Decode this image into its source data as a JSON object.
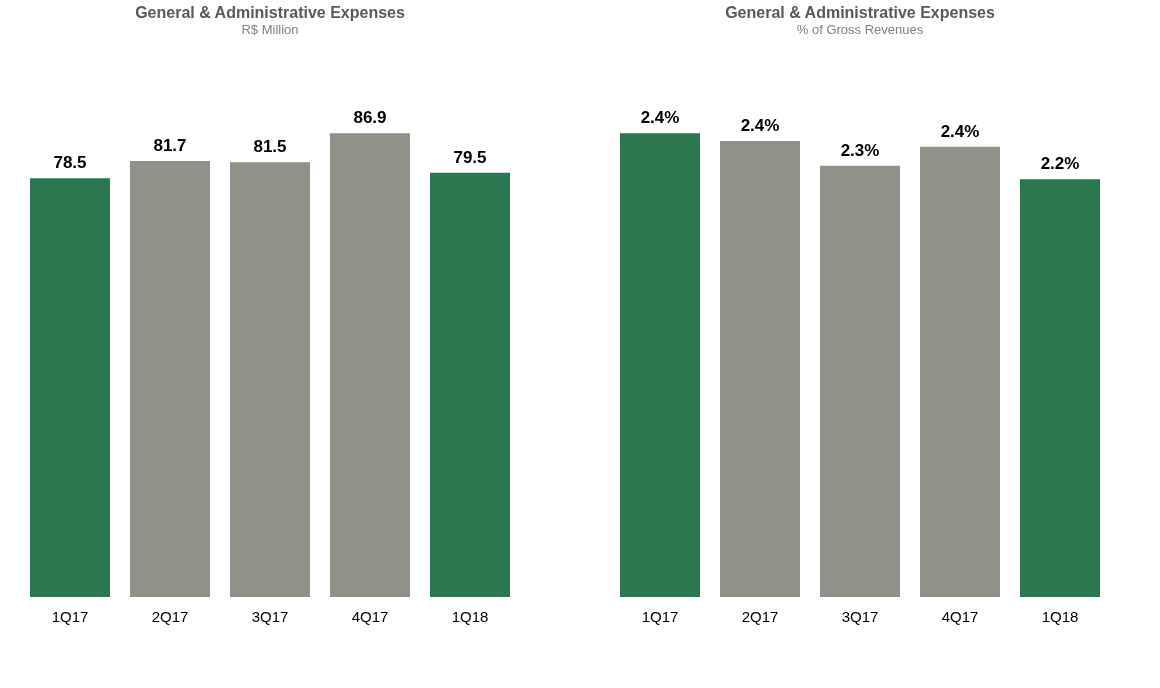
{
  "chart_data": [
    {
      "type": "bar",
      "title": "General & Administrative Expenses",
      "subtitle": "R$ Million",
      "categories": [
        "1Q17",
        "2Q17",
        "3Q17",
        "4Q17",
        "1Q18"
      ],
      "values": [
        78.5,
        81.7,
        81.5,
        86.9,
        79.5
      ],
      "colors": [
        "#2a7750",
        "#919189",
        "#919189",
        "#919189",
        "#2a7750"
      ],
      "data_labels": true,
      "tick_labels": "x",
      "grid": false
    },
    {
      "type": "bar",
      "title": "General & Administrative Expenses",
      "subtitle": "% of Gross Revenues",
      "categories": [
        "1Q17",
        "2Q17",
        "3Q17",
        "4Q17",
        "1Q18"
      ],
      "values": [
        2.43,
        2.39,
        2.26,
        2.36,
        2.19
      ],
      "value_labels": [
        "2.4%",
        "2.4%",
        "2.3%",
        "2.4%",
        "2.2%"
      ],
      "colors": [
        "#2a7750",
        "#919189",
        "#919189",
        "#919189",
        "#2a7750"
      ],
      "tick_labels": "x",
      "grid": false
    }
  ]
}
